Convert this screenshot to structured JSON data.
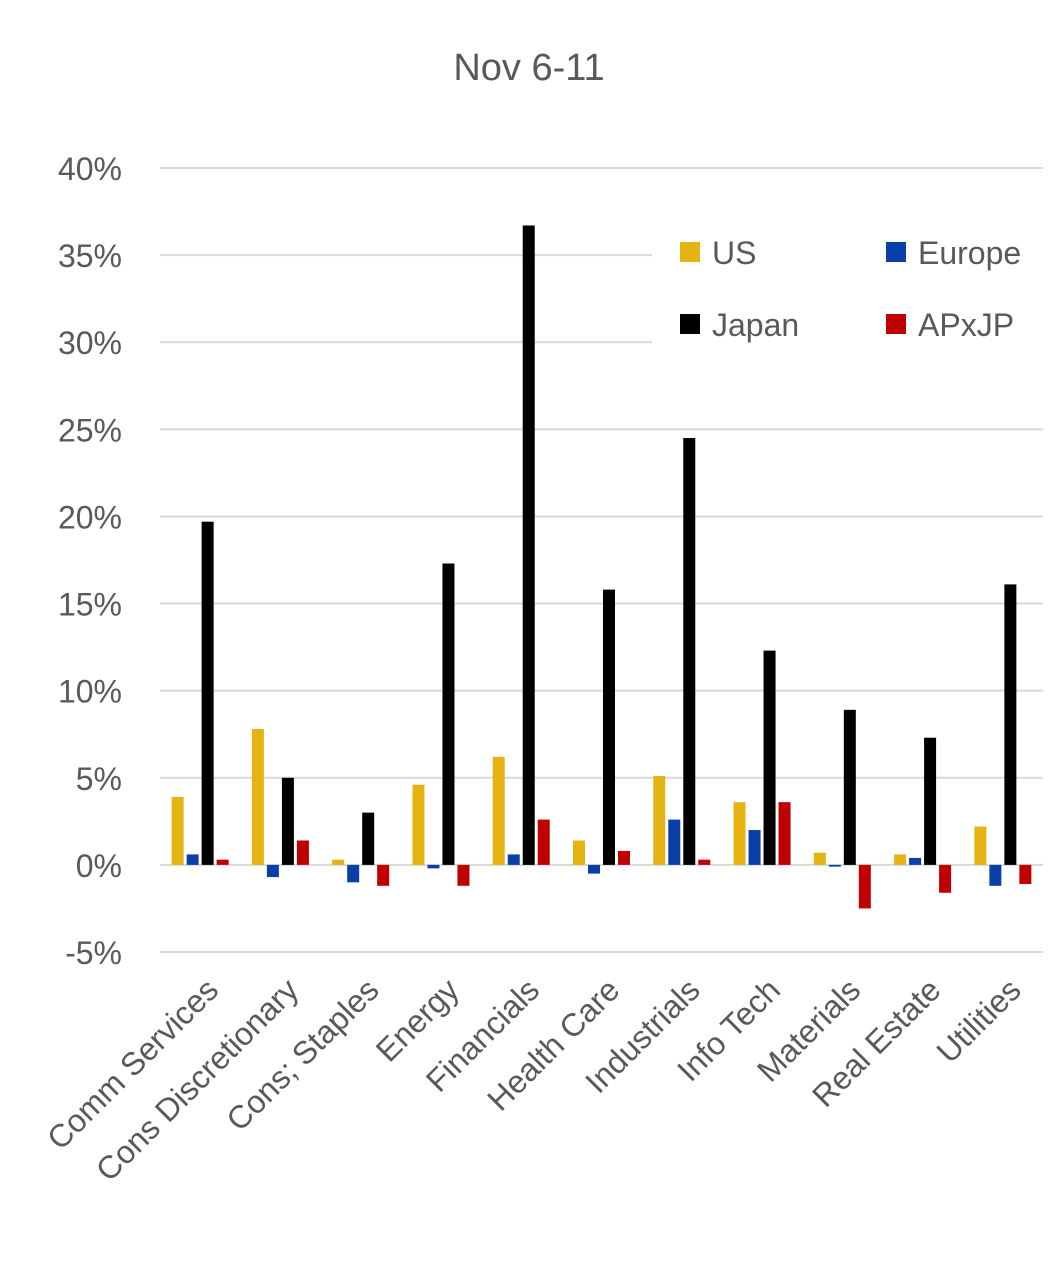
{
  "chart_data": {
    "type": "bar",
    "title": "Nov 6-11",
    "xlabel": "",
    "ylabel": "",
    "ylim": [
      -5,
      40
    ],
    "ytick_step": 5,
    "ytick_suffix": "%",
    "grid": true,
    "legend_position": "top-right",
    "categories": [
      "Comm Services",
      "Cons Discretionary",
      "Cons; Staples",
      "Energy",
      "Financials",
      "Health Care",
      "Industrials",
      "Info Tech",
      "Materials",
      "Real Estate",
      "Utilities"
    ],
    "series": [
      {
        "name": "US",
        "color": "#E6B412",
        "values": [
          3.9,
          7.8,
          0.3,
          4.6,
          6.2,
          1.4,
          5.1,
          3.6,
          0.7,
          0.6,
          2.2
        ]
      },
      {
        "name": "Europe",
        "color": "#0B3FA8",
        "values": [
          0.6,
          -0.7,
          -1.0,
          -0.2,
          0.6,
          -0.5,
          2.6,
          2.0,
          -0.1,
          0.4,
          -1.2
        ]
      },
      {
        "name": "Japan",
        "color": "#000000",
        "values": [
          19.7,
          5.0,
          3.0,
          17.3,
          36.7,
          15.8,
          24.5,
          12.3,
          8.9,
          7.3,
          16.1
        ]
      },
      {
        "name": "APxJP",
        "color": "#C00000",
        "values": [
          0.3,
          1.4,
          -1.2,
          -1.2,
          2.6,
          0.8,
          0.3,
          3.6,
          -2.5,
          -1.6,
          -1.1
        ]
      }
    ]
  }
}
